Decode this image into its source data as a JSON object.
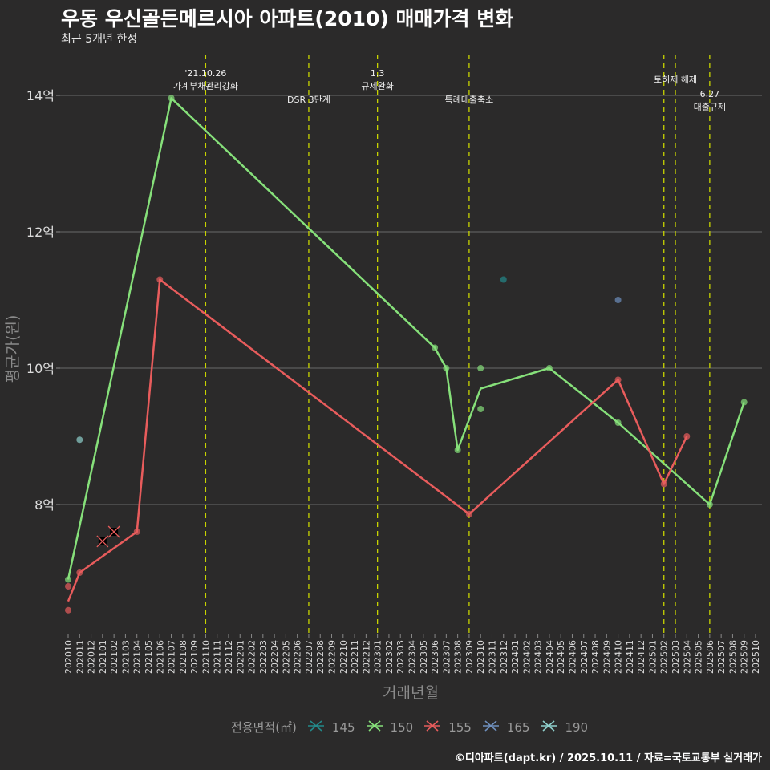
{
  "title": "우동 우신골든메르시아 아파트(2010) 매매가격 변화",
  "subtitle": "최근 5개년 한정",
  "caption": "©디아파트(dapt.kr) / 2025.10.11 / 자료=국토교통부 실거래가",
  "chart_data": {
    "type": "line",
    "title": "우동 우신골든메르시아 아파트(2010) 매매가격 변화",
    "xlabel": "거래년월",
    "ylabel": "평균가(원)",
    "ylim": [
      6.0,
      14.6
    ],
    "yticks": [
      {
        "v": 8,
        "label": "8억"
      },
      {
        "v": 10,
        "label": "10억"
      },
      {
        "v": 12,
        "label": "12억"
      },
      {
        "v": 14,
        "label": "14억"
      }
    ],
    "x_start": "2020-10",
    "x_end": "2025-10",
    "grid": true,
    "legend": {
      "title": "전용면적(㎡)",
      "position": "bottom"
    },
    "series": [
      {
        "name": "145",
        "color": "#23898a",
        "line": [],
        "points": [
          [
            "2023-12",
            11.3
          ]
        ],
        "cancelled": []
      },
      {
        "name": "150",
        "color": "#86e07a",
        "line": [
          [
            "2020-10",
            6.9
          ],
          [
            "2021-07",
            13.96
          ],
          [
            "2023-06",
            10.3
          ],
          [
            "2023-07",
            10.0
          ],
          [
            "2023-08",
            8.8
          ],
          [
            "2023-10",
            9.7
          ],
          [
            "2024-04",
            10.0
          ],
          [
            "2024-10",
            9.2
          ],
          [
            "2025-06",
            8.0
          ],
          [
            "2025-09",
            9.5
          ]
        ],
        "points": [
          [
            "2020-10",
            6.9
          ],
          [
            "2021-07",
            13.96
          ],
          [
            "2023-06",
            10.3
          ],
          [
            "2023-07",
            10.0
          ],
          [
            "2023-08",
            8.8
          ],
          [
            "2023-10",
            10.0
          ],
          [
            "2023-10",
            9.4
          ],
          [
            "2024-04",
            10.0
          ],
          [
            "2024-10",
            9.2
          ],
          [
            "2025-06",
            8.0
          ],
          [
            "2025-09",
            9.5
          ]
        ],
        "cancelled": []
      },
      {
        "name": "155",
        "color": "#e85c5c",
        "line": [
          [
            "2020-10",
            6.58
          ],
          [
            "2020-11",
            7.0
          ],
          [
            "2021-04",
            7.6
          ],
          [
            "2021-06",
            11.3
          ],
          [
            "2023-09",
            7.86
          ],
          [
            "2024-10",
            9.83
          ],
          [
            "2025-02",
            8.3
          ],
          [
            "2025-04",
            9.0
          ]
        ],
        "points": [
          [
            "2020-10",
            6.8
          ],
          [
            "2020-10",
            6.45
          ],
          [
            "2020-11",
            7.0
          ],
          [
            "2021-04",
            7.6
          ],
          [
            "2021-06",
            11.3
          ],
          [
            "2023-09",
            7.86
          ],
          [
            "2024-10",
            9.83
          ],
          [
            "2025-02",
            8.3
          ],
          [
            "2025-04",
            9.0
          ]
        ],
        "cancelled": [
          [
            "2021-01",
            7.46
          ],
          [
            "2021-02",
            7.6
          ]
        ]
      },
      {
        "name": "165",
        "color": "#6e8fbd",
        "line": [],
        "points": [
          [
            "2024-10",
            11.0
          ]
        ],
        "cancelled": []
      },
      {
        "name": "190",
        "color": "#8fd0cc",
        "line": [],
        "points": [
          [
            "2020-11",
            8.95
          ]
        ],
        "cancelled": []
      }
    ],
    "events": [
      {
        "month": "2021-10",
        "lines": [
          "'21.10.26",
          "가계부채관리강화"
        ],
        "row": "upper"
      },
      {
        "month": "2022-07",
        "lines": [
          "DSR 3단계"
        ],
        "row": "lower"
      },
      {
        "month": "2023-01",
        "lines": [
          "1.3",
          "규제완화"
        ],
        "row": "upper"
      },
      {
        "month": "2023-09",
        "lines": [
          "특례대출축소"
        ],
        "row": "lower"
      },
      {
        "month": "2025-02",
        "lines": [],
        "row": "none"
      },
      {
        "month": "2025-03",
        "lines": [
          "토허제 해제"
        ],
        "row": "top"
      },
      {
        "month": "2025-06",
        "lines": [
          "6.27",
          "대출규제"
        ],
        "row": "mid"
      }
    ]
  }
}
